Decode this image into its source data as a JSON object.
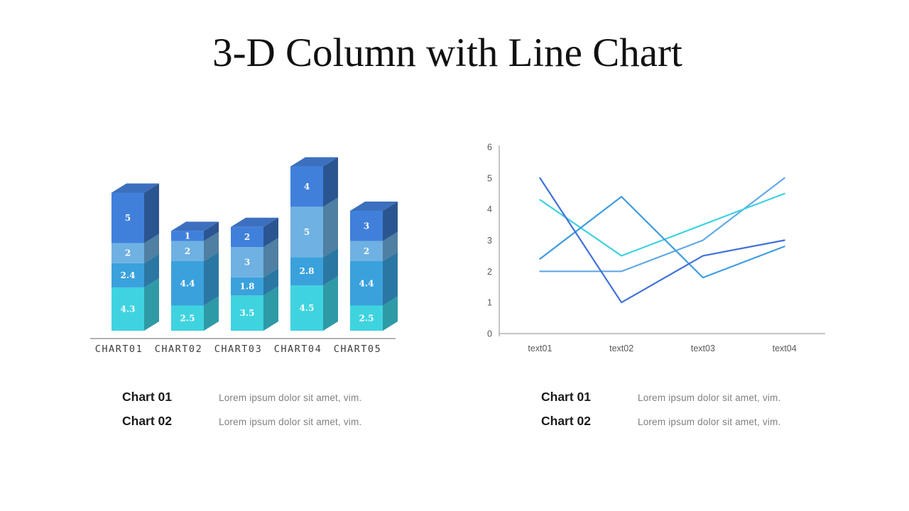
{
  "title": "3-D Column with Line Chart",
  "colors": {
    "background": "#ffffff",
    "axis_line": "#b3b3b3",
    "axis_text": "#595959",
    "category_text": "#3d3d3d",
    "segment_value_text": "#ffffff"
  },
  "chart_data": [
    {
      "type": "bar",
      "variant": "3d-stacked-column",
      "categories": [
        "CHART01",
        "CHART02",
        "CHART03",
        "CHART04",
        "CHART05"
      ],
      "series": [
        {
          "name": "segment-cyan",
          "front_color": "#3fd3e0",
          "side_color": "#2e9aa6",
          "values": [
            4.3,
            2.5,
            3.5,
            4.5,
            2.5
          ]
        },
        {
          "name": "segment-medium-blue",
          "front_color": "#3aa1dc",
          "side_color": "#2b77a4",
          "values": [
            2.4,
            4.4,
            1.8,
            2.8,
            4.4
          ]
        },
        {
          "name": "segment-light-blue",
          "front_color": "#6fb1e2",
          "side_color": "#4f7fa2",
          "values": [
            2,
            2,
            3,
            5,
            2
          ]
        },
        {
          "name": "segment-dark-blue",
          "front_color": "#4080db",
          "side_color": "#2b5591",
          "top_color": "#3c70be",
          "values": [
            5,
            1,
            2,
            4,
            3
          ]
        }
      ],
      "data_labels_shown": true,
      "legend_position": "none"
    },
    {
      "type": "line",
      "x": [
        "text01",
        "text02",
        "text03",
        "text04"
      ],
      "y_ticks": [
        0,
        1,
        2,
        3,
        4,
        5,
        6
      ],
      "ylim": [
        0,
        6
      ],
      "grid": false,
      "legend_position": "none",
      "series": [
        {
          "name": "line-light-blue",
          "color": "#63a8e6",
          "values": [
            2,
            2,
            3,
            5
          ]
        },
        {
          "name": "line-cyan",
          "color": "#41d1e0",
          "values": [
            4.3,
            2.5,
            3.5,
            4.5
          ]
        },
        {
          "name": "line-medium-blue",
          "color": "#3f9ce0",
          "values": [
            2.4,
            4.4,
            1.8,
            2.8
          ]
        },
        {
          "name": "line-dark-blue",
          "color": "#4071d8",
          "values": [
            5,
            1,
            2.5,
            3
          ]
        }
      ]
    }
  ],
  "legends": {
    "left": {
      "items": [
        {
          "label": "Chart 01",
          "desc": "Lorem ipsum dolor sit amet, vim."
        },
        {
          "label": "Chart 02",
          "desc": "Lorem ipsum dolor sit amet, vim."
        }
      ]
    },
    "right": {
      "items": [
        {
          "label": "Chart 01",
          "desc": "Lorem ipsum dolor sit amet, vim."
        },
        {
          "label": "Chart 02",
          "desc": "Lorem ipsum dolor sit amet, vim."
        }
      ]
    }
  }
}
